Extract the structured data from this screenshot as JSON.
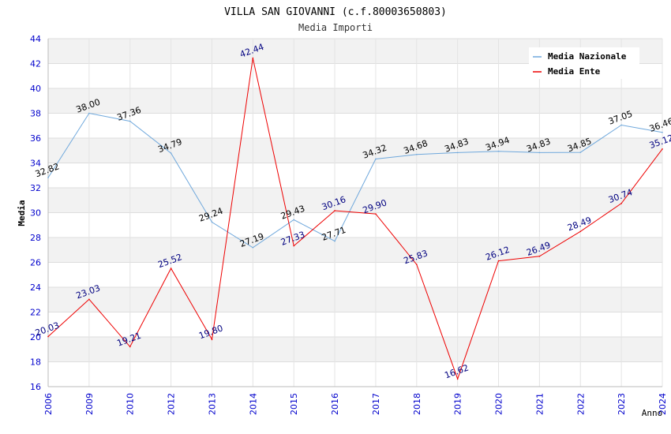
{
  "chart_data": {
    "type": "line",
    "title": "VILLA SAN GIOVANNI (c.f.80003650803)",
    "subtitle": "Media Importi",
    "xlabel": "Anno",
    "ylabel": "Media",
    "categories": [
      "2006",
      "2009",
      "2010",
      "2012",
      "2013",
      "2014",
      "2015",
      "2016",
      "2017",
      "2018",
      "2019",
      "2020",
      "2021",
      "2022",
      "2023",
      "2024"
    ],
    "ylim": [
      16,
      44
    ],
    "yticks": [
      16,
      18,
      20,
      22,
      24,
      26,
      28,
      30,
      32,
      34,
      36,
      38,
      40,
      42,
      44
    ],
    "legend_position": "top-right",
    "series": [
      {
        "name": "Media Nazionale",
        "color": "#6fa8dc",
        "label_color": "#000000",
        "values": [
          32.82,
          38.0,
          37.36,
          34.79,
          29.24,
          27.19,
          29.43,
          27.71,
          34.32,
          34.68,
          34.83,
          34.94,
          34.83,
          34.85,
          37.05,
          36.46
        ],
        "labels": [
          "32.82",
          "38.00",
          "37.36",
          "34.79",
          "29.24",
          "27.19",
          "29.43",
          "27.71",
          "34.32",
          "34.68",
          "34.83",
          "34.94",
          "34.83",
          "34.85",
          "37.05",
          "36.46"
        ]
      },
      {
        "name": "Media Ente",
        "color": "#ee0000",
        "label_color": "#000080",
        "values": [
          20.03,
          23.03,
          19.21,
          25.52,
          19.8,
          42.44,
          27.33,
          30.16,
          29.9,
          25.83,
          16.62,
          26.12,
          26.49,
          28.49,
          30.74,
          35.12
        ],
        "labels": [
          "20.03",
          "23.03",
          "19.21",
          "25.52",
          "19.80",
          "42.44",
          "27.33",
          "30.16",
          "29.90",
          "25.83",
          "16.62",
          "26.12",
          "26.49",
          "28.49",
          "30.74",
          "35.12"
        ]
      }
    ]
  }
}
